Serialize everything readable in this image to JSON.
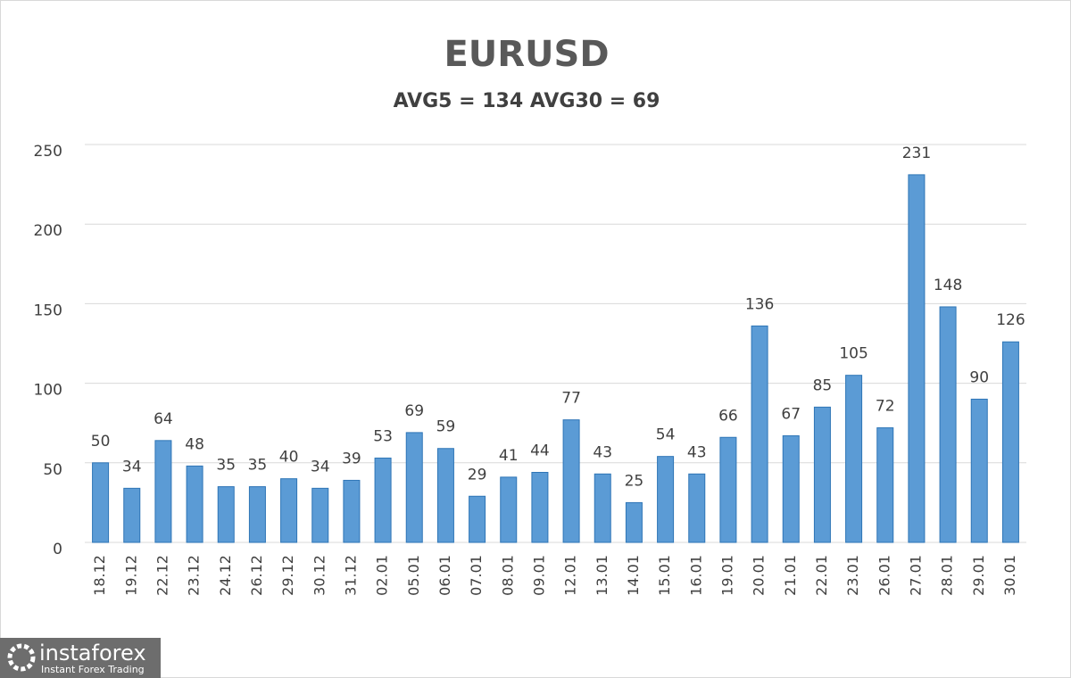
{
  "chart_data": {
    "type": "bar",
    "title": "EURUSD",
    "subtitle": "AVG5 = 134 AVG30 = 69",
    "categories": [
      "18.12",
      "19.12",
      "22.12",
      "23.12",
      "24.12",
      "26.12",
      "29.12",
      "30.12",
      "31.12",
      "02.01",
      "05.01",
      "06.01",
      "07.01",
      "08.01",
      "09.01",
      "12.01",
      "13.01",
      "14.01",
      "15.01",
      "16.01",
      "19.01",
      "20.01",
      "21.01",
      "22.01",
      "23.01",
      "26.01",
      "27.01",
      "28.01",
      "29.01",
      "30.01"
    ],
    "values": [
      50,
      34,
      64,
      48,
      35,
      35,
      40,
      34,
      39,
      53,
      69,
      59,
      29,
      41,
      44,
      77,
      43,
      25,
      54,
      43,
      66,
      136,
      67,
      85,
      105,
      72,
      231,
      148,
      90,
      126
    ],
    "color": "#5b9bd5",
    "ylim": [
      0,
      250
    ],
    "yticks": [
      0,
      50,
      100,
      150,
      200,
      250
    ],
    "grid": true
  },
  "watermark": {
    "brand": "instaforex",
    "tagline": "Instant Forex Trading"
  }
}
